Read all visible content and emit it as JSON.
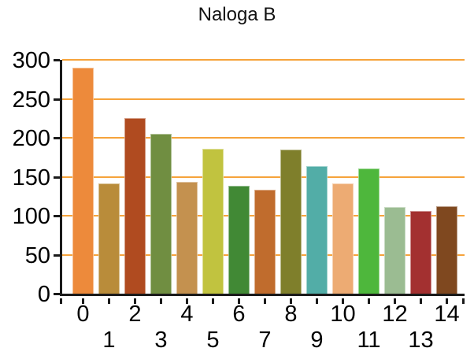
{
  "chart_data": {
    "type": "bar",
    "title": "Naloga B",
    "xlabel": "",
    "ylabel": "",
    "x": [
      0,
      1,
      2,
      3,
      4,
      5,
      6,
      7,
      8,
      9,
      10,
      11,
      12,
      13,
      14
    ],
    "values": [
      290,
      141,
      225,
      205,
      143,
      186,
      138,
      133,
      185,
      164,
      141,
      161,
      111,
      106,
      112
    ],
    "bar_colors": [
      "#ED8A3B",
      "#B98C3A",
      "#B04B20",
      "#708E41",
      "#C4914F",
      "#C1C33F",
      "#418935",
      "#C06C2D",
      "#7F7F2B",
      "#52ADA7",
      "#EDAB73",
      "#4EB73C",
      "#9BBC92",
      "#A33030",
      "#7F481F"
    ],
    "ylim": [
      0,
      300
    ],
    "yticks": [
      0,
      50,
      100,
      150,
      200,
      250,
      300
    ],
    "grid": "horizontal-only",
    "gridline_color": "#F6A33B",
    "axis_color": "#1A1A1A",
    "text_color": "#000000",
    "legend": "none",
    "x_label_layout": "staggered-two-rows"
  }
}
